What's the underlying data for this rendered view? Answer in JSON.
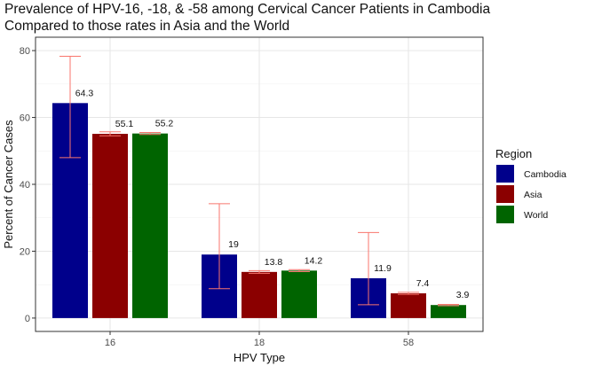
{
  "chart_data": {
    "type": "bar",
    "title_lines": [
      "Prevalence of HPV-16, -18, & -58 among Cervical Cancer Patients in Cambodia",
      "Compared to those rates in Asia and the World"
    ],
    "xlabel": "HPV Type",
    "ylabel": "Percent of Cancer Cases",
    "categories": [
      "16",
      "18",
      "58"
    ],
    "ylim": [
      -4,
      84
    ],
    "yticks": [
      0,
      20,
      40,
      60,
      80
    ],
    "grid": true,
    "legend": {
      "title": "Region",
      "position": "right"
    },
    "series": [
      {
        "name": "Cambodia",
        "color": "#00008B",
        "values": [
          64.3,
          19,
          11.9
        ],
        "labels": [
          "64.3",
          "19",
          "11.9"
        ],
        "err_low": [
          48,
          8.8,
          4
        ],
        "err_high": [
          78.3,
          34.2,
          25.6
        ]
      },
      {
        "name": "Asia",
        "color": "#8B0000",
        "values": [
          55.1,
          13.8,
          7.4
        ],
        "labels": [
          "55.1",
          "13.8",
          "7.4"
        ],
        "err_low": [
          54.5,
          13.4,
          7.1
        ],
        "err_high": [
          55.7,
          14.2,
          7.7
        ]
      },
      {
        "name": "World",
        "color": "#006400",
        "values": [
          55.2,
          14.2,
          3.9
        ],
        "labels": [
          "55.2",
          "14.2",
          "3.9"
        ],
        "err_low": [
          54.9,
          13.9,
          3.7
        ],
        "err_high": [
          55.5,
          14.5,
          4.1
        ]
      }
    ],
    "error_bar_color": "#F8766D"
  }
}
